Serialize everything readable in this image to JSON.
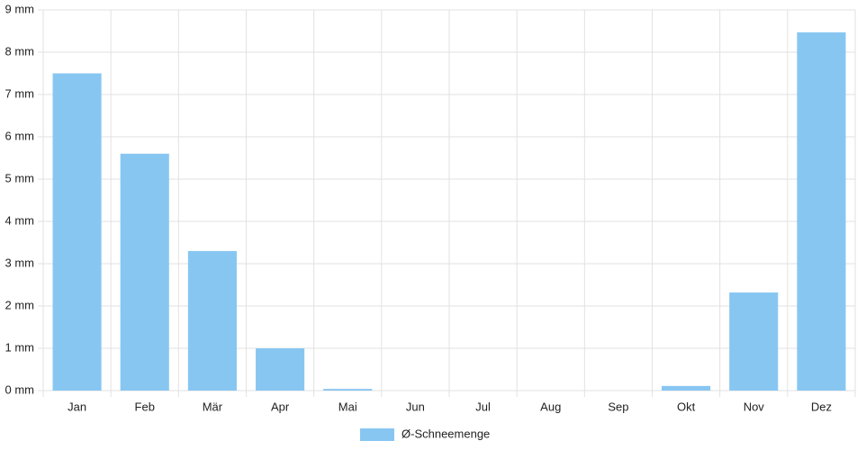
{
  "chart_data": {
    "type": "bar",
    "categories": [
      "Jan",
      "Feb",
      "Mär",
      "Apr",
      "Mai",
      "Jun",
      "Jul",
      "Aug",
      "Sep",
      "Okt",
      "Nov",
      "Dez"
    ],
    "series": [
      {
        "name": "Ø-Schneemenge",
        "color": "#88c6f2",
        "values": [
          7.5,
          5.6,
          3.3,
          1.0,
          0.04,
          0,
          0,
          0,
          0,
          0.11,
          2.32,
          8.47
        ]
      }
    ],
    "ylim": [
      0,
      9
    ],
    "yticks": [
      {
        "value": 0,
        "label": "0 mm"
      },
      {
        "value": 1,
        "label": "1 mm"
      },
      {
        "value": 2,
        "label": "2 mm"
      },
      {
        "value": 3,
        "label": "3 mm"
      },
      {
        "value": 4,
        "label": "4 mm"
      },
      {
        "value": 5,
        "label": "5 mm"
      },
      {
        "value": 6,
        "label": "6 mm"
      },
      {
        "value": 7,
        "label": "7 mm"
      },
      {
        "value": 8,
        "label": "8 mm"
      },
      {
        "value": 9,
        "label": "9 mm"
      }
    ],
    "grid": true,
    "legend": "bottom"
  }
}
